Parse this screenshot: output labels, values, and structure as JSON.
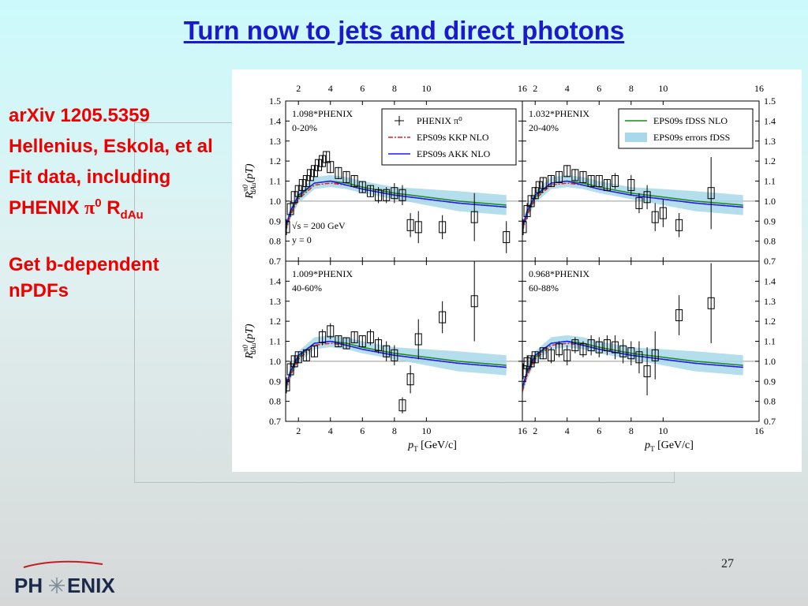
{
  "slide": {
    "title": "Turn now to jets and direct photons",
    "notes": [
      "arXiv 1205.5359",
      "Hellenius, Eskola, et al",
      {
        "text": "Fit data, including PHENIX ",
        "symbol": "π",
        "sup": "0",
        "r": "R",
        "sub": "dAu"
      },
      "Get b-dependent nPDFs"
    ],
    "page_number": "27",
    "logo": [
      "PH",
      "ENIX"
    ]
  },
  "chart_data": {
    "type": "multi-panel",
    "xlim": [
      1.2,
      16
    ],
    "xticks": [
      2,
      4,
      6,
      8,
      10,
      16
    ],
    "reference": 1,
    "ylabel": {
      "base": "R",
      "sup": "π0",
      "sub": "dAu",
      "rest": "(pT)"
    },
    "xlabel": {
      "base": "p",
      "sub": "T",
      "rest": " [GeV/c]"
    },
    "points_name": "PHENIX π⁰",
    "points_legend_panel": 0,
    "models": [
      {
        "name": "EPS09s errors fDSS",
        "style": "band",
        "color": "#a8d8ea",
        "legend_panel": 1,
        "x": [
          1.2,
          1.5,
          2,
          3,
          4,
          5,
          6,
          8,
          10,
          12,
          15
        ],
        "lower": [
          0.83,
          0.91,
          0.99,
          1.06,
          1.07,
          1.06,
          1.04,
          1.01,
          0.98,
          0.95,
          0.93
        ],
        "upper": [
          0.89,
          0.97,
          1.05,
          1.12,
          1.13,
          1.12,
          1.1,
          1.07,
          1.06,
          1.05,
          1.03
        ]
      },
      {
        "name": "EPS09s fDSS NLO",
        "style": "line",
        "color": "#1a8a1a",
        "legend_panel": 1,
        "x": [
          1.2,
          1.5,
          2,
          3,
          4,
          5,
          6,
          8,
          10,
          12,
          15
        ],
        "values": [
          0.86,
          0.94,
          1.02,
          1.09,
          1.1,
          1.09,
          1.07,
          1.04,
          1.02,
          1,
          0.98
        ]
      },
      {
        "name": "EPS09s KKP NLO",
        "style": "line",
        "dash": true,
        "color": "#e02020",
        "legend_panel": 0,
        "x": [
          1.2,
          1.5,
          2,
          3,
          4,
          5,
          6,
          8,
          10,
          12,
          15
        ],
        "values": [
          0.85,
          0.93,
          1.01,
          1.08,
          1.09,
          1.08,
          1.06,
          1.03,
          1.01,
          0.99,
          0.97
        ]
      },
      {
        "name": "EPS09s AKK NLO",
        "style": "line",
        "color": "#1a1aff",
        "legend_panel": 0,
        "x": [
          1.2,
          1.5,
          2,
          3,
          4,
          5,
          6,
          8,
          10,
          12,
          15
        ],
        "values": [
          0.87,
          0.95,
          1.03,
          1.09,
          1.1,
          1.08,
          1.06,
          1.03,
          1.01,
          0.99,
          0.97
        ]
      }
    ],
    "panels": [
      {
        "labels_top": [
          "1.098*PHENIX",
          "0-20%"
        ],
        "labels_bottom": [
          "√s = 200 GeV",
          "y = 0"
        ],
        "legend": "upper right",
        "xtick_side": "top",
        "ytick_side": "left",
        "ylim": [
          0.7,
          1.5
        ],
        "yticks": [
          0.7,
          0.8,
          0.9,
          {
            "value": 1,
            "label": "1.0"
          },
          1.1,
          1.2,
          1.3,
          1.4,
          1.5
        ],
        "x": [
          1.25,
          1.5,
          1.75,
          2,
          2.25,
          2.5,
          2.75,
          3,
          3.25,
          3.5,
          3.75,
          4,
          4.5,
          5,
          5.5,
          6,
          6.5,
          7,
          7.5,
          8,
          8.5,
          9,
          9.5,
          11,
          13,
          15
        ],
        "values": [
          0.87,
          0.96,
          1.02,
          1.05,
          1.08,
          1.1,
          1.13,
          1.15,
          1.18,
          1.2,
          1.22,
          1.17,
          1.14,
          1.12,
          1.1,
          1.07,
          1.05,
          1.03,
          1.03,
          1.04,
          1.03,
          0.88,
          0.87,
          0.87,
          0.92,
          0.82
        ],
        "errors": [
          0.04,
          0.04,
          0.03,
          0.03,
          0.03,
          0.03,
          0.03,
          0.03,
          0.03,
          0.03,
          0.03,
          0.03,
          0.03,
          0.03,
          0.03,
          0.03,
          0.03,
          0.04,
          0.04,
          0.05,
          0.05,
          0.06,
          0.08,
          0.06,
          0.12,
          0.08
        ]
      },
      {
        "labels_top": [
          "1.032*PHENIX",
          "20-40%"
        ],
        "legend": "upper right",
        "xtick_side": "top",
        "ytick_side": "right",
        "ylim": [
          0.7,
          1.5
        ],
        "yticks": [
          0.7,
          0.8,
          0.9,
          {
            "value": 1,
            "label": "1.0"
          },
          1.1,
          1.2,
          1.3,
          1.4,
          1.5
        ],
        "x": [
          1.25,
          1.5,
          1.75,
          2,
          2.25,
          2.5,
          3,
          3.5,
          4,
          4.5,
          5,
          5.5,
          6,
          6.5,
          7,
          8,
          8.5,
          9,
          9.5,
          10,
          11,
          13
        ],
        "values": [
          0.87,
          0.95,
          1,
          1.04,
          1.07,
          1.09,
          1.1,
          1.12,
          1.15,
          1.13,
          1.12,
          1.1,
          1.1,
          1.08,
          1.1,
          1.08,
          0.99,
          1.02,
          0.92,
          0.94,
          0.88,
          1.04
        ],
        "errors": [
          0.04,
          0.04,
          0.03,
          0.03,
          0.03,
          0.03,
          0.03,
          0.03,
          0.03,
          0.03,
          0.03,
          0.03,
          0.03,
          0.03,
          0.04,
          0.05,
          0.05,
          0.06,
          0.07,
          0.07,
          0.06,
          0.18
        ]
      },
      {
        "labels_top": [
          "1.009*PHENIX",
          "40-60%"
        ],
        "xtick_side": "bottom",
        "ytick_side": "left",
        "ylim": [
          0.7,
          1.5
        ],
        "yticks": [
          0.7,
          0.8,
          0.9,
          {
            "value": 1,
            "label": "1.0"
          },
          1.1,
          1.2,
          1.3,
          1.4
        ],
        "x": [
          1.25,
          1.5,
          1.75,
          2,
          2.5,
          3,
          3.5,
          4,
          4.5,
          5,
          5.5,
          6,
          6.5,
          7,
          7.5,
          8,
          8.5,
          9,
          9.5,
          11,
          13
        ],
        "values": [
          0.88,
          0.96,
          1,
          1.02,
          1.03,
          1.05,
          1.12,
          1.15,
          1.1,
          1.09,
          1.12,
          1.1,
          1.12,
          1.08,
          1.05,
          1.03,
          0.78,
          0.91,
          1.11,
          1.22,
          1.3
        ],
        "errors": [
          0.04,
          0.04,
          0.03,
          0.03,
          0.03,
          0.03,
          0.04,
          0.04,
          0.03,
          0.03,
          0.03,
          0.03,
          0.04,
          0.04,
          0.05,
          0.05,
          0.04,
          0.07,
          0.1,
          0.08,
          0.2
        ]
      },
      {
        "labels_top": [
          "0.968*PHENIX",
          "60-88%"
        ],
        "xtick_side": "bottom",
        "ytick_side": "right",
        "ylim": [
          0.7,
          1.5
        ],
        "yticks": [
          0.7,
          0.8,
          0.9,
          {
            "value": 1,
            "label": "1.0"
          },
          1.1,
          1.2,
          1.3,
          1.4
        ],
        "x": [
          1.25,
          1.5,
          1.75,
          2,
          2.5,
          3,
          3.5,
          4,
          4.5,
          5,
          5.5,
          6,
          6.5,
          7,
          7.5,
          8,
          8.5,
          9,
          9.5,
          11,
          13
        ],
        "values": [
          0.95,
          0.99,
          1,
          1.02,
          1.04,
          1.03,
          1.06,
          1.03,
          1.08,
          1.06,
          1.08,
          1.07,
          1.08,
          1.07,
          1.05,
          1.04,
          1.02,
          0.95,
          1.03,
          1.23,
          1.29
        ],
        "errors": [
          0.04,
          0.04,
          0.03,
          0.03,
          0.03,
          0.04,
          0.04,
          0.05,
          0.04,
          0.04,
          0.05,
          0.05,
          0.05,
          0.06,
          0.06,
          0.06,
          0.08,
          0.12,
          0.12,
          0.1,
          0.2
        ]
      }
    ]
  }
}
